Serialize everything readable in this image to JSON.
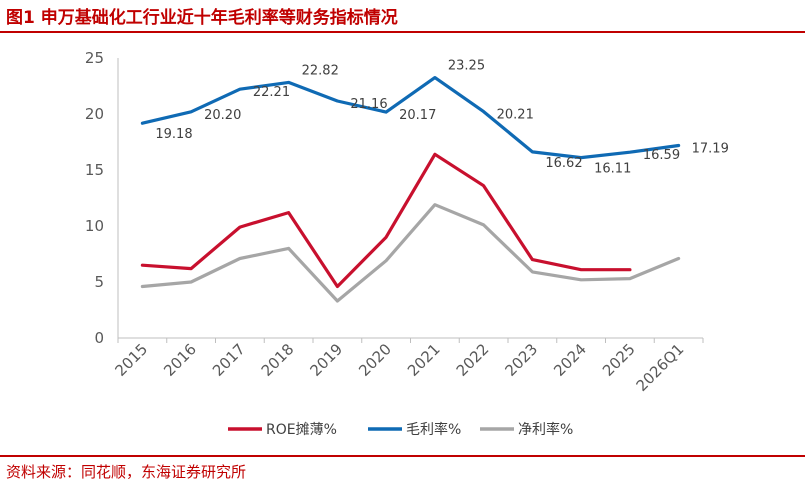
{
  "title": "图1  申万基础化工行业近十年毛利率等财务指标情况",
  "source": "资料来源：同花顺，东海证券研究所",
  "chart_data": {
    "type": "line",
    "categories": [
      "2015",
      "2016",
      "2017",
      "2018",
      "2019",
      "2020",
      "2021",
      "2022",
      "2023",
      "2024",
      "2025",
      "2026Q1"
    ],
    "ylim": [
      0,
      25
    ],
    "yticks": [
      0,
      5,
      10,
      15,
      20,
      25
    ],
    "grid": false,
    "legend": "bottom",
    "series": [
      {
        "name": "ROE摊薄%",
        "color": "#c8102e",
        "values": [
          6.5,
          6.2,
          9.9,
          11.2,
          4.6,
          9.0,
          16.4,
          13.6,
          7.0,
          6.1,
          6.1,
          null
        ]
      },
      {
        "name": "毛利率%",
        "color": "#0f6ab4",
        "values": [
          19.18,
          20.2,
          22.21,
          22.82,
          21.16,
          20.17,
          23.25,
          20.21,
          16.62,
          16.11,
          16.59,
          17.19
        ],
        "labels": [
          "19.18",
          "20.20",
          "22.21",
          "22.82",
          "21.16",
          "20.17",
          "23.25",
          "20.21",
          "16.62",
          "16.11",
          "16.59",
          "17.19"
        ]
      },
      {
        "name": "净利率%",
        "color": "#a6a6a6",
        "values": [
          4.6,
          5.0,
          7.1,
          8.0,
          3.3,
          6.9,
          11.9,
          10.1,
          5.9,
          5.2,
          5.3,
          7.1
        ]
      }
    ]
  }
}
